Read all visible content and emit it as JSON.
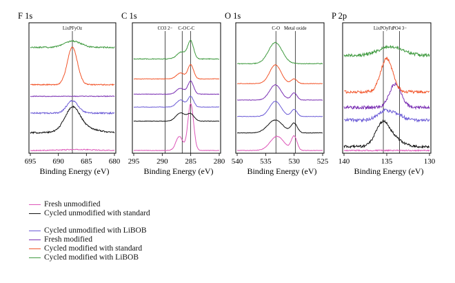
{
  "colors": {
    "fresh_unmodified": "#dd55b8",
    "cycled_unmodified_standard": "#111111",
    "cycled_unmodified_libob": "#6a5ad6",
    "fresh_modified": "#7a2fb3",
    "cycled_modified_standard": "#f2552a",
    "cycled_modified_libob": "#3f9a3f"
  },
  "chart_data": [
    {
      "type": "line",
      "title": "F 1s",
      "xlabel": "Binding Energy (eV)",
      "xlim": [
        695,
        680
      ],
      "xticks": [
        "695",
        "690",
        "685",
        "680"
      ],
      "grid": false,
      "reference_lines": [
        {
          "x": 687.5,
          "label": "LixPFyOz"
        }
      ],
      "series": [
        {
          "key": "fresh_unmodified",
          "offset": 0,
          "peaks": [
            [
              686.5,
              0.05,
              3
            ]
          ],
          "noise": 0.025
        },
        {
          "key": "cycled_unmodified_standard",
          "offset": 1,
          "peaks": [
            [
              687.5,
              1.2,
              1.3
            ],
            [
              686.0,
              0.3,
              2.5
            ]
          ],
          "noise": 0.04
        },
        {
          "key": "cycled_unmodified_libob",
          "offset": 2.1,
          "peaks": [
            [
              687.5,
              0.7,
              1.0
            ]
          ],
          "noise": 0.04
        },
        {
          "key": "fresh_modified",
          "offset": 3.05,
          "peaks": [],
          "noise": 0.02
        },
        {
          "key": "cycled_modified_standard",
          "offset": 3.7,
          "peaks": [
            [
              687.5,
              2.1,
              0.9
            ]
          ],
          "noise": 0.03
        },
        {
          "key": "cycled_modified_libob",
          "offset": 5.8,
          "peaks": [
            [
              687.5,
              0.35,
              1.5
            ]
          ],
          "noise": 0.04
        }
      ]
    },
    {
      "type": "line",
      "title": "C 1s",
      "xlabel": "Binding Energy (eV)",
      "xlim": [
        295,
        280
      ],
      "xticks": [
        "295",
        "290",
        "285",
        "280"
      ],
      "grid": false,
      "reference_lines": [
        {
          "x": 289.5,
          "label": "CO3 2−"
        },
        {
          "x": 286.5,
          "label": "C-O"
        },
        {
          "x": 285.0,
          "label": "C-C"
        }
      ],
      "series": [
        {
          "key": "fresh_unmodified",
          "offset": 0,
          "peaks": [
            [
              285.0,
              2.0,
              0.5
            ],
            [
              287.0,
              0.6,
              0.6
            ]
          ],
          "noise": 0.01
        },
        {
          "key": "cycled_unmodified_standard",
          "offset": 1.25,
          "peaks": [
            [
              285.0,
              0.3,
              0.6
            ],
            [
              286.8,
              0.35,
              0.8
            ]
          ],
          "noise": 0.01
        },
        {
          "key": "cycled_unmodified_libob",
          "offset": 1.85,
          "peaks": [
            [
              285.0,
              0.45,
              0.5
            ],
            [
              286.8,
              0.3,
              0.7
            ]
          ],
          "noise": 0.01
        },
        {
          "key": "fresh_modified",
          "offset": 2.4,
          "peaks": [
            [
              285.0,
              0.55,
              0.5
            ],
            [
              286.8,
              0.25,
              0.7
            ]
          ],
          "noise": 0.01
        },
        {
          "key": "cycled_modified_standard",
          "offset": 3.05,
          "peaks": [
            [
              285.0,
              0.6,
              0.5
            ],
            [
              286.8,
              0.25,
              0.7
            ]
          ],
          "noise": 0.01
        },
        {
          "key": "cycled_modified_libob",
          "offset": 3.9,
          "peaks": [
            [
              285.0,
              0.75,
              0.5
            ],
            [
              286.6,
              0.3,
              0.8
            ]
          ],
          "noise": 0.015
        }
      ]
    },
    {
      "type": "line",
      "title": "O 1s",
      "xlabel": "Binding Energy (eV)",
      "xlim": [
        540,
        525
      ],
      "xticks": [
        "540",
        "535",
        "530",
        "525"
      ],
      "grid": false,
      "reference_lines": [
        {
          "x": 533.2,
          "label": "C-O"
        },
        {
          "x": 529.8,
          "label": "Metal oxide"
        }
      ],
      "series": [
        {
          "key": "fresh_unmodified",
          "offset": 0,
          "peaks": [
            [
              533.0,
              0.6,
              1.2
            ],
            [
              530.0,
              0.6,
              0.5
            ]
          ],
          "noise": 0.01
        },
        {
          "key": "cycled_unmodified_standard",
          "offset": 0.75,
          "peaks": [
            [
              533.3,
              0.55,
              1.3
            ],
            [
              530.0,
              0.4,
              0.55
            ]
          ],
          "noise": 0.01
        },
        {
          "key": "cycled_unmodified_libob",
          "offset": 1.45,
          "peaks": [
            [
              533.3,
              0.65,
              1.0
            ],
            [
              530.0,
              0.3,
              0.5
            ]
          ],
          "noise": 0.01
        },
        {
          "key": "fresh_modified",
          "offset": 2.15,
          "peaks": [
            [
              533.3,
              0.65,
              1.0
            ],
            [
              530.0,
              0.3,
              0.5
            ]
          ],
          "noise": 0.01
        },
        {
          "key": "cycled_modified_standard",
          "offset": 2.85,
          "peaks": [
            [
              533.3,
              0.8,
              1.0
            ],
            [
              530.0,
              0.2,
              0.5
            ]
          ],
          "noise": 0.01
        },
        {
          "key": "cycled_modified_libob",
          "offset": 3.7,
          "peaks": [
            [
              533.3,
              0.9,
              1.2
            ]
          ],
          "noise": 0.015
        }
      ]
    },
    {
      "type": "line",
      "title": "P 2p",
      "xlabel": "Binding Energy (eV)",
      "xlim": [
        140,
        130
      ],
      "xticks": [
        "140",
        "135",
        "130"
      ],
      "grid": false,
      "reference_lines": [
        {
          "x": 135.4,
          "label": "LixPOyFz"
        },
        {
          "x": 133.5,
          "label": "PO4 3−"
        }
      ],
      "series": [
        {
          "key": "fresh_unmodified",
          "offset": 0,
          "peaks": [],
          "noise": 0.03
        },
        {
          "key": "cycled_unmodified_standard",
          "offset": 0.2,
          "peaks": [
            [
              135.5,
              1.2,
              0.8
            ],
            [
              134.0,
              0.35,
              0.9
            ]
          ],
          "noise": 0.06
        },
        {
          "key": "cycled_unmodified_libob",
          "offset": 1.55,
          "peaks": [
            [
              135.3,
              0.45,
              0.8
            ],
            [
              133.8,
              0.25,
              0.8
            ]
          ],
          "noise": 0.08
        },
        {
          "key": "fresh_modified",
          "offset": 2.2,
          "peaks": [
            [
              134.0,
              1.2,
              0.7
            ]
          ],
          "noise": 0.08
        },
        {
          "key": "cycled_modified_standard",
          "offset": 3.0,
          "peaks": [
            [
              135.0,
              1.7,
              0.7
            ]
          ],
          "noise": 0.07
        },
        {
          "key": "cycled_modified_libob",
          "offset": 4.85,
          "peaks": [
            [
              134.5,
              0.45,
              1.5
            ]
          ],
          "noise": 0.08
        }
      ]
    }
  ],
  "legend": {
    "items": [
      {
        "key": "fresh_unmodified",
        "label": "Fresh unmodified"
      },
      {
        "key": "cycled_unmodified_standard",
        "label": "Cycled unmodified with standard"
      },
      {
        "key": "cycled_unmodified_libob",
        "label": "Cycled unmodified with LiBOB"
      },
      {
        "key": "fresh_modified",
        "label": "Fresh modified"
      },
      {
        "key": "cycled_modified_standard",
        "label": "Cycled modified with standard"
      },
      {
        "key": "cycled_modified_libob",
        "label": "Cycled modified with LiBOB"
      }
    ]
  }
}
